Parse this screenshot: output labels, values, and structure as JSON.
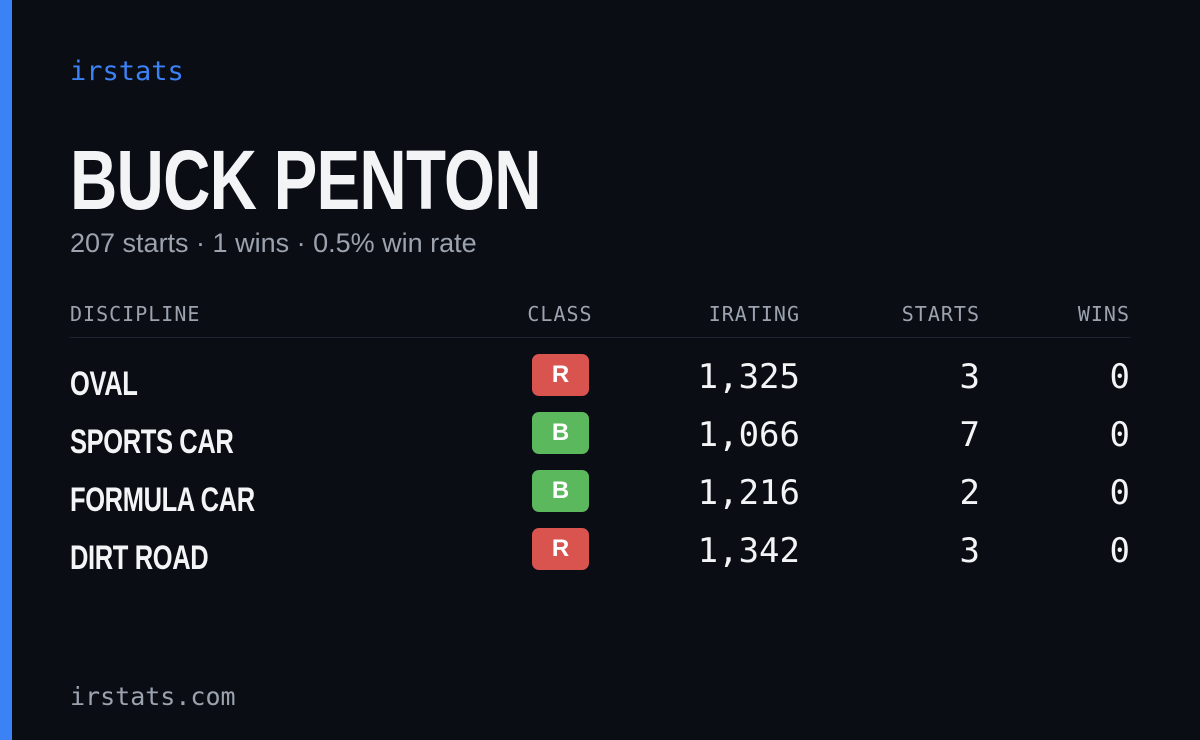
{
  "header": {
    "brand": "irstats",
    "name": "BUCK PENTON",
    "subtitle": "207 starts · 1 wins · 0.5% win rate"
  },
  "table": {
    "columns": [
      "DISCIPLINE",
      "CLASS",
      "IRATING",
      "STARTS",
      "WINS"
    ],
    "rows": [
      [
        "OVAL",
        "R",
        "1,325",
        "3",
        "0"
      ],
      [
        "SPORTS CAR",
        "B",
        "1,066",
        "7",
        "0"
      ],
      [
        "FORMULA CAR",
        "B",
        "1,216",
        "2",
        "0"
      ],
      [
        "DIRT ROAD",
        "R",
        "1,342",
        "3",
        "0"
      ]
    ]
  },
  "footer": {
    "url": "irstats.com"
  }
}
